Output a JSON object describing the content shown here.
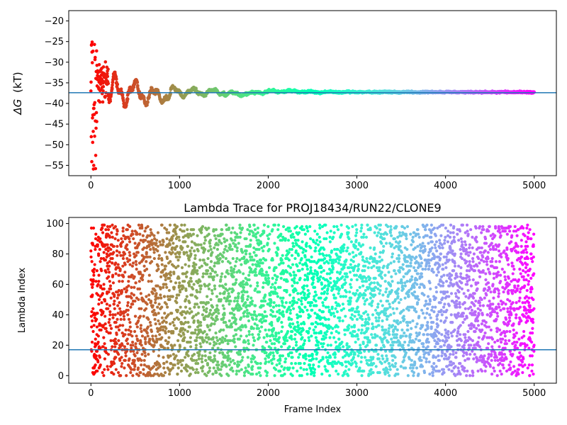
{
  "chart_data": [
    {
      "type": "scatter",
      "title": "",
      "xlabel": "",
      "ylabel": "ΔG (kT)",
      "ylabel_symbol": "ΔG",
      "ylabel_unit": "(kT)",
      "xlim": [
        -250,
        5250
      ],
      "ylim": [
        -57.5,
        -17.5
      ],
      "xticks": [
        0,
        1000,
        2000,
        3000,
        4000,
        5000
      ],
      "yticks": [
        -20,
        -25,
        -30,
        -35,
        -40,
        -45,
        -50,
        -55
      ],
      "reference_line": -37.4,
      "reference_line_color": "#1f77b4",
      "colormap": "rainbow (red → purple by frame index)",
      "grid": false,
      "series_description": "Free energy estimate per frame, noisy early (≈ -25 to -56 at frames 0–60), converging to ≈ -37.4 by frame ~1800 and staying flat to frame 5000",
      "sample_points": [
        {
          "x": 0,
          "y": -30
        },
        {
          "x": 5,
          "y": -50
        },
        {
          "x": 10,
          "y": -26
        },
        {
          "x": 15,
          "y": -52
        },
        {
          "x": 20,
          "y": -38
        },
        {
          "x": 30,
          "y": -25
        },
        {
          "x": 40,
          "y": -56.5
        },
        {
          "x": 50,
          "y": -42
        },
        {
          "x": 60,
          "y": -47
        },
        {
          "x": 80,
          "y": -41
        },
        {
          "x": 100,
          "y": -33.5
        },
        {
          "x": 150,
          "y": -34.5
        },
        {
          "x": 200,
          "y": -38
        },
        {
          "x": 300,
          "y": -36
        },
        {
          "x": 500,
          "y": -36.5
        },
        {
          "x": 700,
          "y": -38.5
        },
        {
          "x": 1000,
          "y": -37.2
        },
        {
          "x": 1500,
          "y": -37.6
        },
        {
          "x": 1800,
          "y": -38
        },
        {
          "x": 2000,
          "y": -37.2
        },
        {
          "x": 2500,
          "y": -37.5
        },
        {
          "x": 3000,
          "y": -37.4
        },
        {
          "x": 4000,
          "y": -37.3
        },
        {
          "x": 5000,
          "y": -37.3
        }
      ]
    },
    {
      "type": "scatter",
      "title": "Lambda Trace for PROJ18434/RUN22/CLONE9",
      "xlabel": "Frame Index",
      "ylabel": "Lambda Index",
      "xlim": [
        -250,
        5250
      ],
      "ylim": [
        -5,
        104
      ],
      "xticks": [
        0,
        1000,
        2000,
        3000,
        4000,
        5000
      ],
      "yticks": [
        0,
        20,
        40,
        60,
        80,
        100
      ],
      "reference_line": 17,
      "reference_line_color": "#1f77b4",
      "colormap": "rainbow (red → purple by frame index)",
      "grid": false,
      "series_description": "Lambda index visited per frame, spread roughly uniformly across 0–99 for frames 0–5000",
      "point_count": 5000
    }
  ]
}
